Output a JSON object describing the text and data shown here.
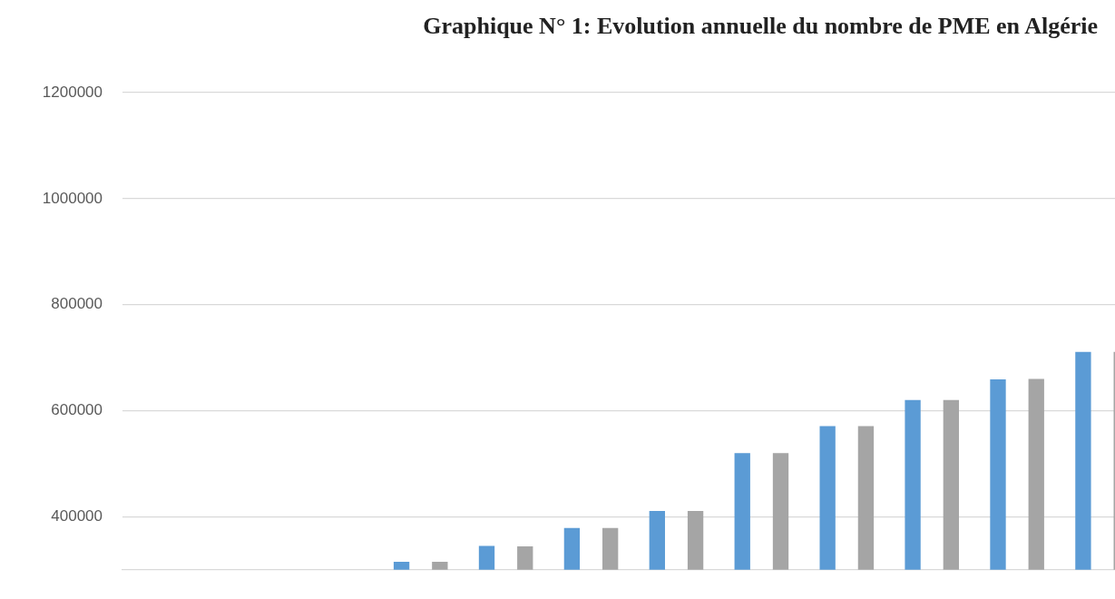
{
  "chart_data": {
    "type": "bar",
    "title": "Graphique N° 1: Evolution annuelle du nombre de PME en Algérie",
    "categories": [
      null,
      null,
      null,
      null,
      null,
      null,
      null,
      null,
      null,
      null,
      null,
      null
    ],
    "series": [
      {
        "color": "#5b9bd5",
        "values": [
          null,
          null,
          null,
          315000,
          345000,
          379000,
          411000,
          520000,
          571000,
          620000,
          659000,
          711000
        ]
      },
      {
        "color": "#a5a5a5",
        "values": [
          null,
          null,
          null,
          315000,
          344000,
          379000,
          411000,
          520000,
          571000,
          620000,
          660000,
          711000
        ]
      }
    ],
    "ylim": [
      300000,
      1200000
    ],
    "yticks": [
      400000,
      600000,
      800000,
      1000000,
      1200000
    ],
    "grid": "y",
    "legend": false,
    "tick_labels": "y"
  }
}
